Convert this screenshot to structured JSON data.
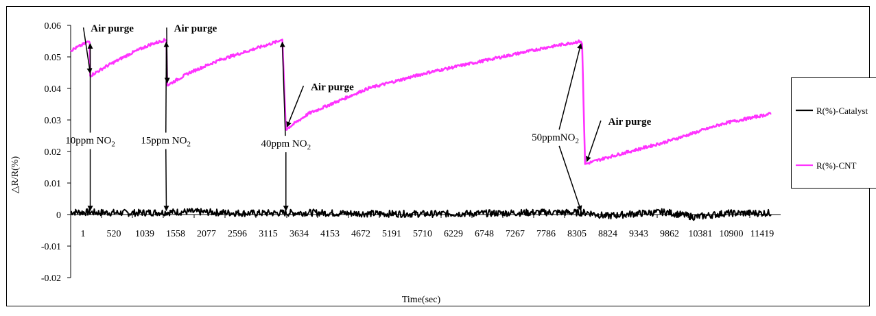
{
  "chart_data": {
    "type": "line",
    "xlabel": "Time(sec)",
    "ylabel": "△R/R(%)",
    "ylim": [
      -0.02,
      0.06
    ],
    "xlim": [
      1,
      11938
    ],
    "grid": false,
    "legend_position": "right",
    "y_ticks": [
      "-0.02",
      "-0.01",
      "0",
      "0.01",
      "0.02",
      "0.03",
      "0.04",
      "0.05",
      "0.06"
    ],
    "x_ticks": [
      "1",
      "520",
      "1039",
      "1558",
      "2077",
      "2596",
      "3115",
      "3634",
      "4153",
      "4672",
      "5191",
      "5710",
      "6229",
      "6748",
      "7267",
      "7786",
      "8305",
      "8824",
      "9343",
      "9862",
      "10381",
      "10900",
      "11419"
    ],
    "legend": [
      "R(%)-Catalyst",
      "R(%)-CNT"
    ],
    "series": [
      {
        "name": "R(%)-Catalyst",
        "color": "#000000",
        "points": [
          [
            1,
            0.0008
          ],
          [
            1000,
            0.0005
          ],
          [
            2000,
            0.0009
          ],
          [
            3000,
            0.0004
          ],
          [
            4000,
            0.0006
          ],
          [
            5000,
            0.0003
          ],
          [
            6000,
            0.0002
          ],
          [
            7000,
            0.0004
          ],
          [
            8000,
            0.0007
          ],
          [
            8700,
            0.0006
          ],
          [
            9000,
            -0.0005
          ],
          [
            9500,
            0.0003
          ],
          [
            10000,
            0.0008
          ],
          [
            10500,
            -0.0008
          ],
          [
            11000,
            0.0004
          ],
          [
            11780,
            0.0005
          ]
        ]
      },
      {
        "name": "R(%)-CNT",
        "color": "#ff33ff",
        "points": [
          [
            1,
            0.052
          ],
          [
            320,
            0.055
          ],
          [
            330,
            0.044
          ],
          [
            600,
            0.047
          ],
          [
            1000,
            0.051
          ],
          [
            1350,
            0.054
          ],
          [
            1610,
            0.0555
          ],
          [
            1625,
            0.041
          ],
          [
            2000,
            0.045
          ],
          [
            2500,
            0.049
          ],
          [
            3000,
            0.052
          ],
          [
            3500,
            0.055
          ],
          [
            3560,
            0.0555
          ],
          [
            3620,
            0.027
          ],
          [
            4000,
            0.032
          ],
          [
            5000,
            0.04
          ],
          [
            6000,
            0.045
          ],
          [
            7000,
            0.049
          ],
          [
            8000,
            0.053
          ],
          [
            8580,
            0.055
          ],
          [
            8600,
            0.054
          ],
          [
            8650,
            0.016
          ],
          [
            9000,
            0.018
          ],
          [
            10000,
            0.023
          ],
          [
            11000,
            0.029
          ],
          [
            11780,
            0.032
          ]
        ]
      }
    ],
    "annotations": [
      {
        "text": "Air purge",
        "x": 700,
        "y": 0.058,
        "arrow_to": [
          330,
          0.044
        ]
      },
      {
        "text": "Air purge",
        "x": 2100,
        "y": 0.058,
        "arrow_to": [
          1625,
          0.041
        ]
      },
      {
        "text": "Air purge",
        "x": 4400,
        "y": 0.0395,
        "arrow_to": [
          3640,
          0.027
        ]
      },
      {
        "text": "Air purge",
        "x": 9400,
        "y": 0.0285,
        "arrow_to": [
          8680,
          0.016
        ]
      },
      {
        "text": "10ppm NO",
        "sub": "2",
        "x": 330,
        "y": 0.0225,
        "arrows_to": [
          [
            330,
            0.055
          ],
          [
            330,
            0.0004
          ]
        ]
      },
      {
        "text": "15ppm NO",
        "sub": "2",
        "x": 1600,
        "y": 0.0225,
        "arrows_to": [
          [
            1610,
            0.0555
          ],
          [
            1610,
            0.0004
          ]
        ]
      },
      {
        "text": "40ppm NO",
        "sub": "2",
        "x": 3620,
        "y": 0.0215,
        "arrows_to": [
          [
            3560,
            0.0555
          ],
          [
            3620,
            0.0004
          ]
        ]
      },
      {
        "text": "50ppmNO",
        "sub": "2",
        "x": 8150,
        "y": 0.0235,
        "arrows_to": [
          [
            8580,
            0.055
          ],
          [
            8580,
            0.0004
          ]
        ]
      }
    ]
  }
}
